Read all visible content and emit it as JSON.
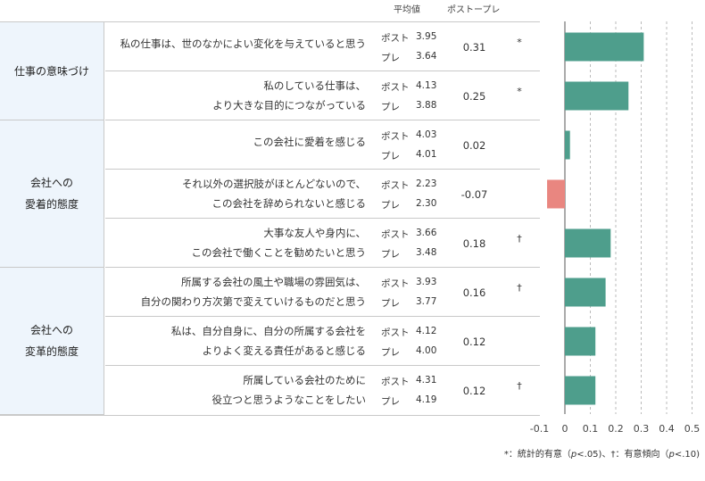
{
  "header": {
    "mean_label": "平均値",
    "diff_label": "ポストープレ"
  },
  "groups": [
    {
      "label": "仕事の意味づけ"
    },
    {
      "label": "会社への\n愛着的態度"
    },
    {
      "label": "会社への\n変革的態度"
    }
  ],
  "row_labels": {
    "post": "ポスト",
    "pre": "プレ"
  },
  "rows": [
    {
      "item": "私の仕事は、世のなかによい変化を与えていると思う",
      "post": "3.95",
      "pre": "3.64",
      "diff_text": "0.31",
      "sig": "*"
    },
    {
      "item": "私のしている仕事は、\nより大きな目的につながっている",
      "post": "4.13",
      "pre": "3.88",
      "diff_text": "0.25",
      "sig": "*"
    },
    {
      "item": "この会社に愛着を感じる",
      "post": "4.03",
      "pre": "4.01",
      "diff_text": "0.02",
      "sig": ""
    },
    {
      "item": "それ以外の選択肢がほとんどないので、\nこの会社を辞められないと感じる",
      "post": "2.23",
      "pre": "2.30",
      "diff_text": "-0.07",
      "sig": ""
    },
    {
      "item": "大事な友人や身内に、\nこの会社で働くことを勧めたいと思う",
      "post": "3.66",
      "pre": "3.48",
      "diff_text": "0.18",
      "sig": "†"
    },
    {
      "item": "所属する会社の風土や職場の雰囲気は、\n自分の関わり方次第で変えていけるものだと思う",
      "post": "3.93",
      "pre": "3.77",
      "diff_text": "0.16",
      "sig": "†"
    },
    {
      "item": "私は、自分自身に、自分の所属する会社を\nよりよく変える責任があると感じる",
      "post": "4.12",
      "pre": "4.00",
      "diff_text": "0.12",
      "sig": ""
    },
    {
      "item": "所属している会社のために\n役立つと思うようなことをしたい",
      "post": "4.31",
      "pre": "4.19",
      "diff_text": "0.12",
      "sig": "†"
    }
  ],
  "chart_data": {
    "type": "bar",
    "orientation": "horizontal",
    "categories": [
      "私の仕事は、世のなかによい変化を与えていると思う",
      "私のしている仕事は、より大きな目的につながっている",
      "この会社に愛着を感じる",
      "それ以外の選択肢がほとんどないので、この会社を辞められないと感じる",
      "大事な友人や身内に、この会社で働くことを勧めたいと思う",
      "所属する会社の風土や職場の雰囲気は、自分の関わり方次第で変えていけるものだと思う",
      "私は、自分自身に、自分の所属する会社をよりよく変える責任があると感じる",
      "所属している会社のために役立つと思うようなことをしたい"
    ],
    "values": [
      0.31,
      0.25,
      0.02,
      -0.07,
      0.18,
      0.16,
      0.12,
      0.12
    ],
    "xlim": [
      -0.1,
      0.5
    ],
    "xticks": [
      "-0.1",
      "0",
      "0.1",
      "0.2",
      "0.3",
      "0.4",
      "0.5"
    ],
    "grid": "vertical dashed",
    "colors": {
      "positive": "#4e9e8c",
      "negative": "#e98680",
      "grid": "#bbbbbb",
      "zero_line": "#555555"
    }
  },
  "note": {
    "part1": "*：統計的有意（",
    "p1": "p",
    "part2": "<.05)、†：有意傾向（",
    "p2": "p",
    "part3": "<.10)"
  }
}
